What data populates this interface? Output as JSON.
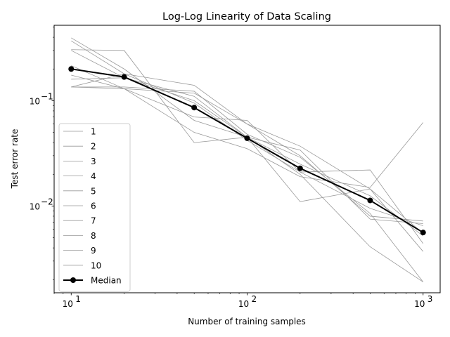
{
  "chart_data": {
    "type": "line",
    "title": "Log-Log Linearity of Data Scaling",
    "xlabel": "Number of training samples",
    "ylabel": "Test error rate",
    "xscale": "log",
    "yscale": "log",
    "xlim": [
      8,
      1250
    ],
    "ylim": [
      0.0015,
      0.52
    ],
    "grid": false,
    "legend_position": "lower-left",
    "x": [
      10,
      20,
      50,
      100,
      200,
      500,
      1000
    ],
    "x_ticks": [
      {
        "value": 10,
        "base": "10",
        "exp": "1"
      },
      {
        "value": 100,
        "base": "10",
        "exp": "2"
      },
      {
        "value": 1000,
        "base": "10",
        "exp": "3"
      }
    ],
    "y_ticks": [
      {
        "value": 0.1,
        "base": "10",
        "exp": "−1"
      },
      {
        "value": 0.01,
        "base": "10",
        "exp": "−2"
      }
    ],
    "series": [
      {
        "name": "1",
        "values": [
          0.305,
          0.3,
          0.04,
          0.045,
          0.011,
          0.0145,
          0.0037
        ]
      },
      {
        "name": "2",
        "values": [
          0.135,
          0.13,
          0.118,
          0.06,
          0.037,
          0.0145,
          0.0055
        ]
      },
      {
        "name": "3",
        "values": [
          0.16,
          0.165,
          0.1,
          0.045,
          0.02,
          0.0041,
          0.0019
        ]
      },
      {
        "name": "4",
        "values": [
          0.395,
          0.2,
          0.065,
          0.045,
          0.034,
          0.0075,
          0.0068
        ]
      },
      {
        "name": "5",
        "values": [
          0.215,
          0.13,
          0.07,
          0.065,
          0.021,
          0.022,
          0.0044
        ]
      },
      {
        "name": "6",
        "values": [
          0.3,
          0.165,
          0.11,
          0.045,
          0.025,
          0.0125,
          0.0052
        ]
      },
      {
        "name": "7",
        "values": [
          0.135,
          0.135,
          0.123,
          0.048,
          0.029,
          0.0085,
          0.0019
        ]
      },
      {
        "name": "8",
        "values": [
          0.175,
          0.13,
          0.05,
          0.035,
          0.019,
          0.015,
          0.062
        ]
      },
      {
        "name": "9",
        "values": [
          0.135,
          0.18,
          0.14,
          0.06,
          0.03,
          0.008,
          0.0072
        ]
      },
      {
        "name": "10",
        "values": [
          0.37,
          0.18,
          0.095,
          0.042,
          0.021,
          0.0095,
          0.0065
        ]
      }
    ],
    "median": {
      "name": "Median",
      "values": [
        0.2,
        0.168,
        0.086,
        0.044,
        0.0228,
        0.0113,
        0.0056
      ]
    },
    "colors": {
      "runs": "#999999",
      "median": "#000000"
    }
  }
}
